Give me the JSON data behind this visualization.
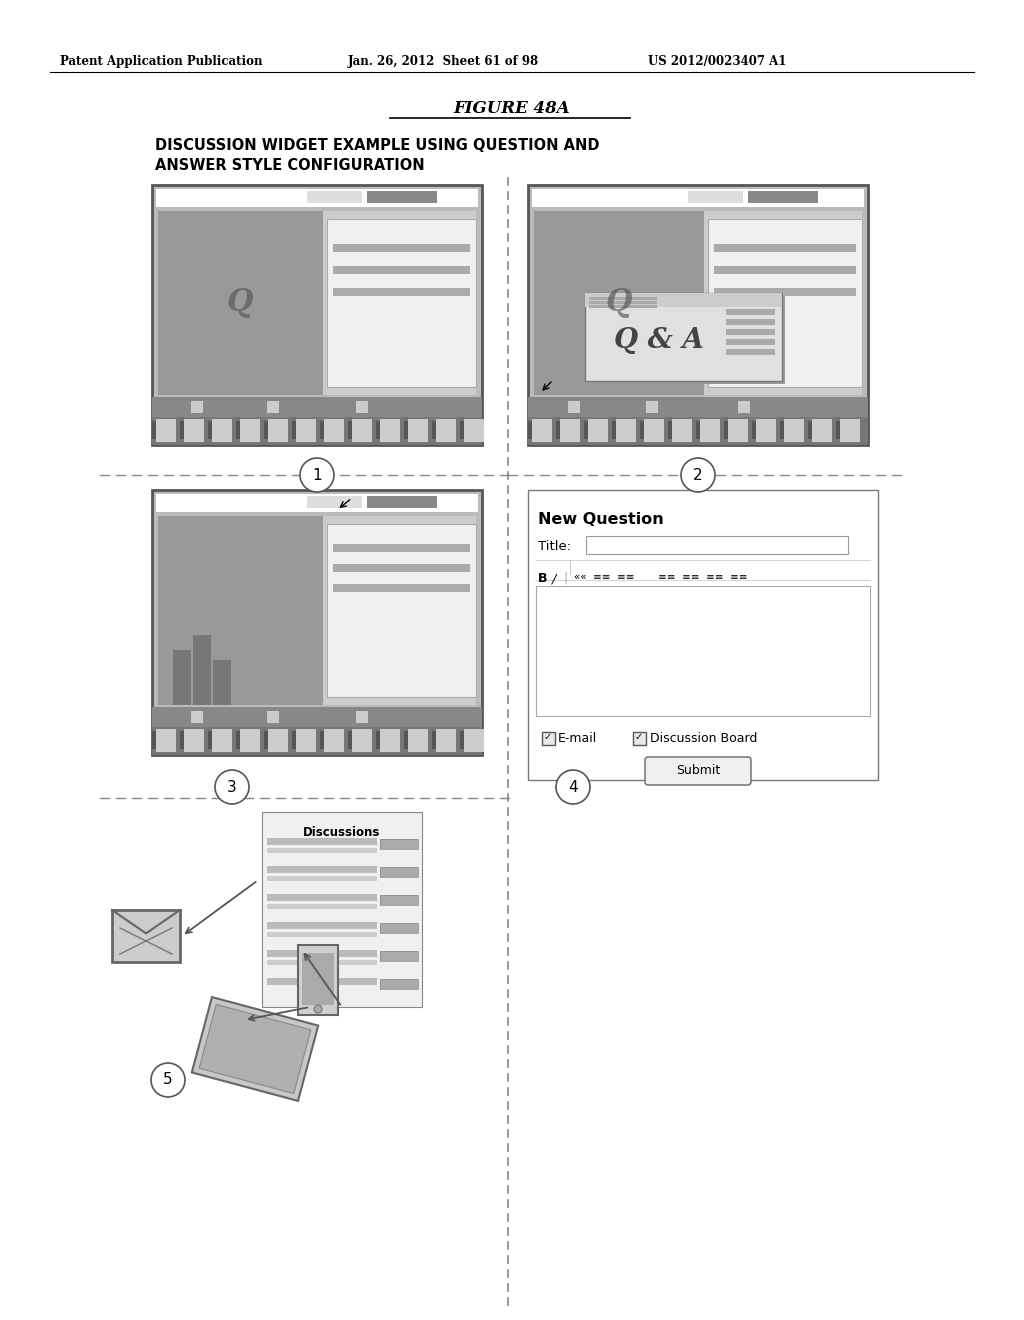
{
  "bg_color": "#ffffff",
  "header_left": "Patent Application Publication",
  "header_mid": "Jan. 26, 2012  Sheet 61 of 98",
  "header_right": "US 2012/0023407 A1",
  "figure_title": "FIGURE 48A",
  "figure_subtitle1": "DISCUSSION WIDGET EXAMPLE USING QUESTION AND",
  "figure_subtitle2": "ANSWER STYLE CONFIGURATION",
  "label1": "1",
  "label2": "2",
  "label3": "3",
  "label4": "4",
  "label5": "5",
  "c_outer": "#666666",
  "c_dark": "#888888",
  "c_med": "#aaaaaa",
  "c_light": "#cccccc",
  "c_lighter": "#dddddd",
  "c_panel_bg": "#e8e8e8",
  "c_white": "#ffffff",
  "c_darkbg": "#999999",
  "c_filmstrip": "#777777",
  "c_topbar": "#aaaaaa"
}
